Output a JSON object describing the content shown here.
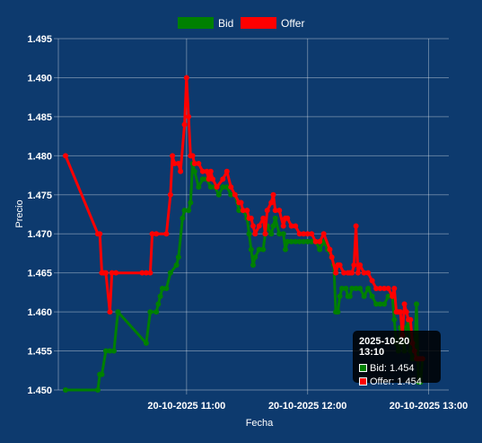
{
  "chart_data": {
    "type": "line",
    "title": "",
    "xlabel": "Fecha",
    "ylabel": "Precio",
    "ylim": [
      1.45,
      1.495
    ],
    "y_ticks": [
      "1.495",
      "1.490",
      "1.485",
      "1.480",
      "1.475",
      "1.470",
      "1.465",
      "1.460",
      "1.455",
      "1.450"
    ],
    "x_ticks": [
      "20-10-2025 11:00",
      "20-10-2025 12:00",
      "20-10-2025 13:00"
    ],
    "x_tick_minutes": [
      660,
      720,
      780
    ],
    "xlim_minutes": [
      600,
      790
    ],
    "grid": true,
    "legend_position": "top",
    "series": [
      {
        "name": "Bid",
        "color": "#008000",
        "points": [
          [
            600,
            1.45
          ],
          [
            616,
            1.45
          ],
          [
            617,
            1.452
          ],
          [
            618,
            1.452
          ],
          [
            620,
            1.455
          ],
          [
            622,
            1.455
          ],
          [
            624,
            1.455
          ],
          [
            626,
            1.46
          ],
          [
            640,
            1.456
          ],
          [
            642,
            1.46
          ],
          [
            645,
            1.46
          ],
          [
            646,
            1.461
          ],
          [
            647,
            1.462
          ],
          [
            648,
            1.463
          ],
          [
            650,
            1.463
          ],
          [
            652,
            1.465
          ],
          [
            655,
            1.466
          ],
          [
            656,
            1.467
          ],
          [
            658,
            1.472
          ],
          [
            659,
            1.473
          ],
          [
            661,
            1.473
          ],
          [
            662,
            1.474
          ],
          [
            663,
            1.479
          ],
          [
            664,
            1.478
          ],
          [
            666,
            1.476
          ],
          [
            668,
            1.477
          ],
          [
            670,
            1.477
          ],
          [
            672,
            1.476
          ],
          [
            674,
            1.476
          ],
          [
            676,
            1.475
          ],
          [
            678,
            1.476
          ],
          [
            680,
            1.476
          ],
          [
            682,
            1.475
          ],
          [
            684,
            1.475
          ],
          [
            686,
            1.473
          ],
          [
            688,
            1.473
          ],
          [
            690,
            1.472
          ],
          [
            691,
            1.47
          ],
          [
            692,
            1.468
          ],
          [
            693,
            1.466
          ],
          [
            694,
            1.467
          ],
          [
            696,
            1.468
          ],
          [
            698,
            1.468
          ],
          [
            699,
            1.47
          ],
          [
            700,
            1.471
          ],
          [
            702,
            1.47
          ],
          [
            703,
            1.471
          ],
          [
            704,
            1.472
          ],
          [
            706,
            1.47
          ],
          [
            708,
            1.47
          ],
          [
            709,
            1.468
          ],
          [
            710,
            1.469
          ],
          [
            712,
            1.469
          ],
          [
            714,
            1.469
          ],
          [
            716,
            1.469
          ],
          [
            718,
            1.469
          ],
          [
            720,
            1.469
          ],
          [
            722,
            1.469
          ],
          [
            724,
            1.469
          ],
          [
            726,
            1.468
          ],
          [
            728,
            1.469
          ],
          [
            730,
            1.468
          ],
          [
            732,
            1.467
          ],
          [
            733,
            1.466
          ],
          [
            734,
            1.46
          ],
          [
            735,
            1.46
          ],
          [
            736,
            1.462
          ],
          [
            737,
            1.463
          ],
          [
            739,
            1.463
          ],
          [
            740,
            1.462
          ],
          [
            741,
            1.462
          ],
          [
            742,
            1.463
          ],
          [
            744,
            1.463
          ],
          [
            746,
            1.463
          ],
          [
            748,
            1.462
          ],
          [
            750,
            1.463
          ],
          [
            752,
            1.462
          ],
          [
            754,
            1.461
          ],
          [
            756,
            1.461
          ],
          [
            758,
            1.461
          ],
          [
            760,
            1.462
          ],
          [
            762,
            1.462
          ],
          [
            763,
            1.459
          ],
          [
            764,
            1.456
          ],
          [
            765,
            1.455
          ],
          [
            766,
            1.458
          ],
          [
            767,
            1.456
          ],
          [
            768,
            1.455
          ],
          [
            769,
            1.458
          ],
          [
            770,
            1.459
          ],
          [
            771,
            1.455
          ],
          [
            772,
            1.454
          ],
          [
            773,
            1.454
          ],
          [
            774,
            1.461
          ],
          [
            775,
            1.451
          ],
          [
            776,
            1.451
          ],
          [
            777,
            1.454
          ]
        ]
      },
      {
        "name": "Offer",
        "color": "#ff0000",
        "points": [
          [
            600,
            1.48
          ],
          [
            616,
            1.47
          ],
          [
            617,
            1.47
          ],
          [
            618,
            1.465
          ],
          [
            619,
            1.465
          ],
          [
            620,
            1.465
          ],
          [
            622,
            1.46
          ],
          [
            623,
            1.465
          ],
          [
            625,
            1.465
          ],
          [
            638,
            1.465
          ],
          [
            640,
            1.465
          ],
          [
            642,
            1.465
          ],
          [
            643,
            1.47
          ],
          [
            645,
            1.47
          ],
          [
            650,
            1.47
          ],
          [
            652,
            1.475
          ],
          [
            653,
            1.48
          ],
          [
            654,
            1.479
          ],
          [
            656,
            1.479
          ],
          [
            657,
            1.478
          ],
          [
            659,
            1.484
          ],
          [
            660,
            1.49
          ],
          [
            661,
            1.485
          ],
          [
            662,
            1.48
          ],
          [
            663,
            1.48
          ],
          [
            664,
            1.479
          ],
          [
            666,
            1.479
          ],
          [
            668,
            1.478
          ],
          [
            670,
            1.478
          ],
          [
            671,
            1.477
          ],
          [
            672,
            1.478
          ],
          [
            673,
            1.477
          ],
          [
            675,
            1.476
          ],
          [
            678,
            1.477
          ],
          [
            680,
            1.478
          ],
          [
            682,
            1.476
          ],
          [
            684,
            1.475
          ],
          [
            686,
            1.474
          ],
          [
            687,
            1.474
          ],
          [
            688,
            1.473
          ],
          [
            690,
            1.473
          ],
          [
            691,
            1.472
          ],
          [
            692,
            1.472
          ],
          [
            693,
            1.471
          ],
          [
            694,
            1.47
          ],
          [
            696,
            1.471
          ],
          [
            698,
            1.472
          ],
          [
            699,
            1.47
          ],
          [
            700,
            1.473
          ],
          [
            702,
            1.474
          ],
          [
            703,
            1.475
          ],
          [
            704,
            1.473
          ],
          [
            706,
            1.473
          ],
          [
            708,
            1.471
          ],
          [
            709,
            1.472
          ],
          [
            710,
            1.472
          ],
          [
            712,
            1.471
          ],
          [
            714,
            1.471
          ],
          [
            716,
            1.47
          ],
          [
            718,
            1.47
          ],
          [
            720,
            1.47
          ],
          [
            722,
            1.47
          ],
          [
            724,
            1.469
          ],
          [
            726,
            1.469
          ],
          [
            728,
            1.47
          ],
          [
            731,
            1.468
          ],
          [
            732,
            1.467
          ],
          [
            734,
            1.465
          ],
          [
            735,
            1.466
          ],
          [
            736,
            1.466
          ],
          [
            738,
            1.465
          ],
          [
            740,
            1.465
          ],
          [
            741,
            1.465
          ],
          [
            742,
            1.465
          ],
          [
            743,
            1.466
          ],
          [
            744,
            1.471
          ],
          [
            745,
            1.465
          ],
          [
            746,
            1.466
          ],
          [
            748,
            1.465
          ],
          [
            750,
            1.465
          ],
          [
            752,
            1.464
          ],
          [
            754,
            1.463
          ],
          [
            756,
            1.463
          ],
          [
            758,
            1.463
          ],
          [
            760,
            1.463
          ],
          [
            762,
            1.462
          ],
          [
            763,
            1.463
          ],
          [
            764,
            1.46
          ],
          [
            765,
            1.46
          ],
          [
            766,
            1.46
          ],
          [
            767,
            1.457
          ],
          [
            768,
            1.461
          ],
          [
            769,
            1.46
          ],
          [
            770,
            1.459
          ],
          [
            771,
            1.459
          ],
          [
            772,
            1.456
          ],
          [
            773,
            1.455
          ],
          [
            774,
            1.454
          ],
          [
            775,
            1.454
          ],
          [
            776,
            1.454
          ],
          [
            777,
            1.454
          ]
        ]
      }
    ],
    "tooltip": {
      "title": "2025-10-20 13:10",
      "rows": [
        "Bid: 1.454",
        "Offer: 1.454"
      ]
    }
  }
}
